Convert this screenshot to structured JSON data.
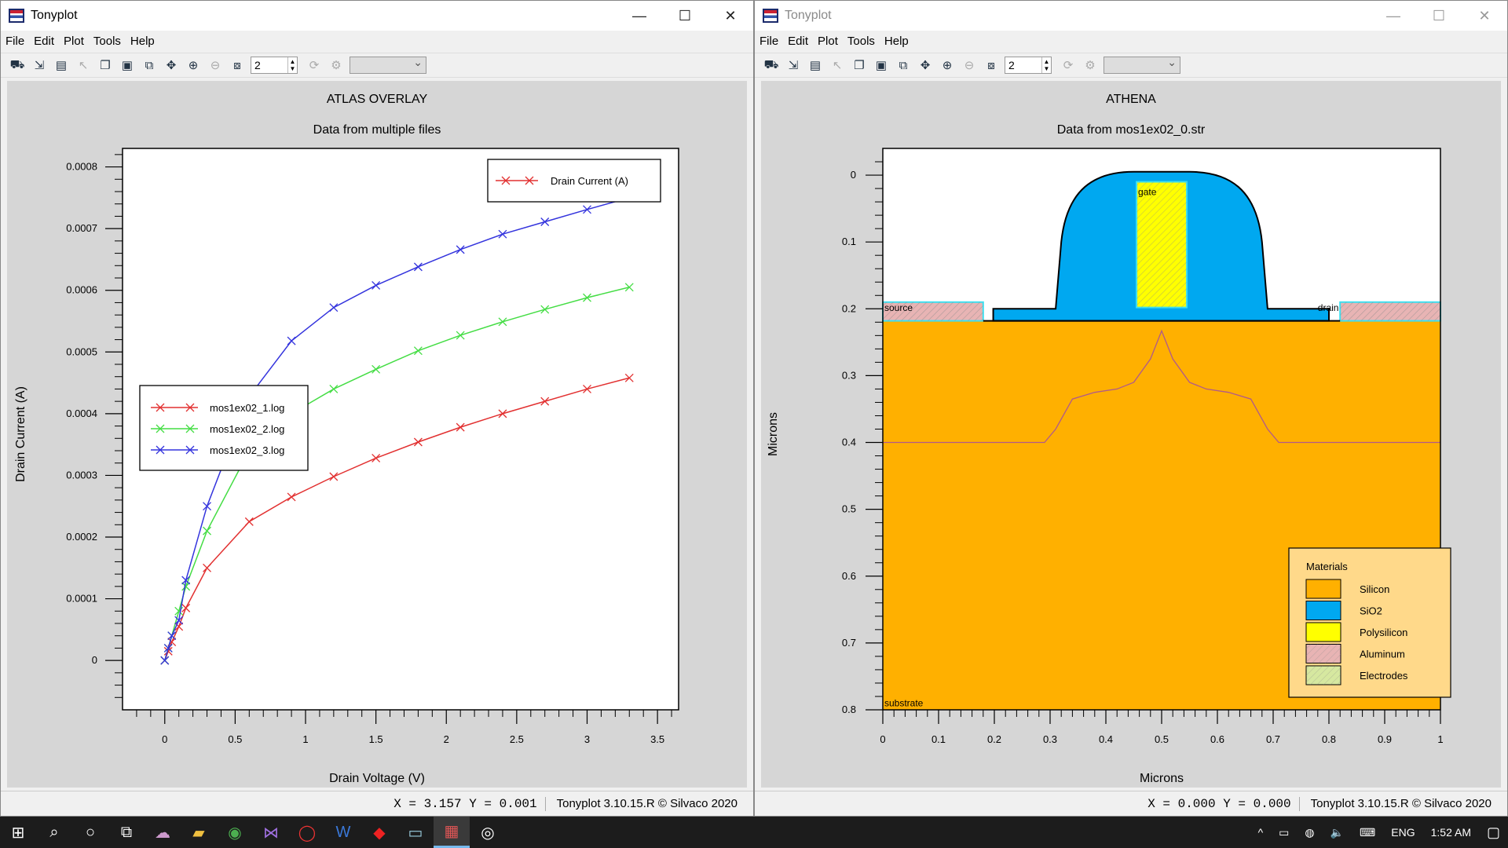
{
  "windows": [
    {
      "title": "Tonyplot",
      "menu": [
        "File",
        "Edit",
        "Plot",
        "Tools",
        "Help"
      ],
      "zoom_value": "2",
      "status": {
        "coord": "X = 3.157 Y = 0.001",
        "copyright": "Tonyplot 3.10.15.R © Silvaco 2020"
      }
    },
    {
      "title": "Tonyplot",
      "menu": [
        "File",
        "Edit",
        "Plot",
        "Tools",
        "Help"
      ],
      "zoom_value": "2",
      "status": {
        "coord": "X = 0.000 Y = 0.000",
        "copyright": "Tonyplot 3.10.15.R © Silvaco 2020"
      }
    }
  ],
  "chart_data": [
    {
      "type": "line",
      "title": "ATLAS OVERLAY",
      "subtitle": "Data from multiple files",
      "xlabel": "Drain Voltage (V)",
      "ylabel": "Drain Current (A)",
      "xlim": [
        -0.3,
        3.65
      ],
      "ylim": [
        -8e-05,
        0.00083
      ],
      "xticks": [
        "0",
        "0.5",
        "1",
        "1.5",
        "2",
        "2.5",
        "3",
        "3.5"
      ],
      "yticks": [
        "0",
        "0.0001",
        "0.0002",
        "0.0003",
        "0.0004",
        "0.0005",
        "0.0006",
        "0.0007",
        "0.0008"
      ],
      "legend_top": "Drain Current (A)",
      "grid": false,
      "x": [
        0,
        0.025,
        0.05,
        0.1,
        0.15,
        0.3,
        0.6,
        0.9,
        1.2,
        1.5,
        1.8,
        2.1,
        2.4,
        2.7,
        3.0,
        3.3
      ],
      "series": [
        {
          "name": "mos1ex02_1.log",
          "color": "#e23030",
          "values": [
            0,
            1.5e-05,
            3e-05,
            5.5e-05,
            8.5e-05,
            0.00015,
            0.000225,
            0.000265,
            0.000298,
            0.000328,
            0.000354,
            0.000378,
            0.0004,
            0.00042,
            0.00044,
            0.000458
          ]
        },
        {
          "name": "mos1ex02_2.log",
          "color": "#44dd44",
          "values": [
            0,
            2e-05,
            4e-05,
            8e-05,
            0.00012,
            0.00021,
            0.00034,
            0.0004,
            0.00044,
            0.000472,
            0.000502,
            0.000527,
            0.000549,
            0.000569,
            0.000588,
            0.000605
          ]
        },
        {
          "name": "mos1ex02_3.log",
          "color": "#3333dd",
          "values": [
            0,
            2e-05,
            4e-05,
            6.5e-05,
            0.00013,
            0.00025,
            0.000428,
            0.000518,
            0.000572,
            0.000608,
            0.000638,
            0.000666,
            0.000691,
            0.000711,
            0.000731,
            0.00075
          ]
        }
      ]
    },
    {
      "type": "heatmap",
      "title": "ATHENA",
      "subtitle": "Data from mos1ex02_0.str",
      "xlabel": "Microns",
      "ylabel": "Microns",
      "xlim": [
        0,
        1
      ],
      "ylim": [
        0.8,
        -0.04
      ],
      "xticks": [
        "0",
        "0.1",
        "0.2",
        "0.3",
        "0.4",
        "0.5",
        "0.6",
        "0.7",
        "0.8",
        "0.9",
        "1"
      ],
      "yticks": [
        "0",
        "0.1",
        "0.2",
        "0.3",
        "0.4",
        "0.5",
        "0.6",
        "0.7",
        "0.8"
      ],
      "region_labels": {
        "gate": "gate",
        "source": "source",
        "drain": "drain",
        "substrate": "substrate"
      },
      "legend_title": "Materials",
      "materials": [
        {
          "name": "Silicon",
          "color": "#ffb000"
        },
        {
          "name": "SiO2",
          "color": "#00a8f0"
        },
        {
          "name": "Polysilicon",
          "color": "#ffff00"
        },
        {
          "name": "Aluminum",
          "color": "#e8b4b4"
        },
        {
          "name": "Electrodes",
          "color": "#d6e8a0"
        }
      ],
      "junction_x": [
        0,
        0.29,
        0.31,
        0.34,
        0.38,
        0.42,
        0.45,
        0.48,
        0.5,
        0.52,
        0.55,
        0.58,
        0.62,
        0.66,
        0.69,
        0.71,
        1.0
      ],
      "junction_y": [
        0.4,
        0.4,
        0.38,
        0.335,
        0.325,
        0.32,
        0.31,
        0.275,
        0.233,
        0.275,
        0.31,
        0.32,
        0.325,
        0.335,
        0.38,
        0.4,
        0.4
      ]
    }
  ],
  "taskbar": {
    "lang": "ENG",
    "time": "1:52 AM",
    "icons": [
      "start-icon",
      "search-icon",
      "cortana-icon",
      "task-view-icon",
      "app-icon",
      "explorer-icon",
      "chrome-icon",
      "visual-studio-icon",
      "opera-icon",
      "word-icon",
      "acrobat-icon",
      "notepad-icon",
      "tonyplot-icon",
      "obs-icon"
    ]
  }
}
